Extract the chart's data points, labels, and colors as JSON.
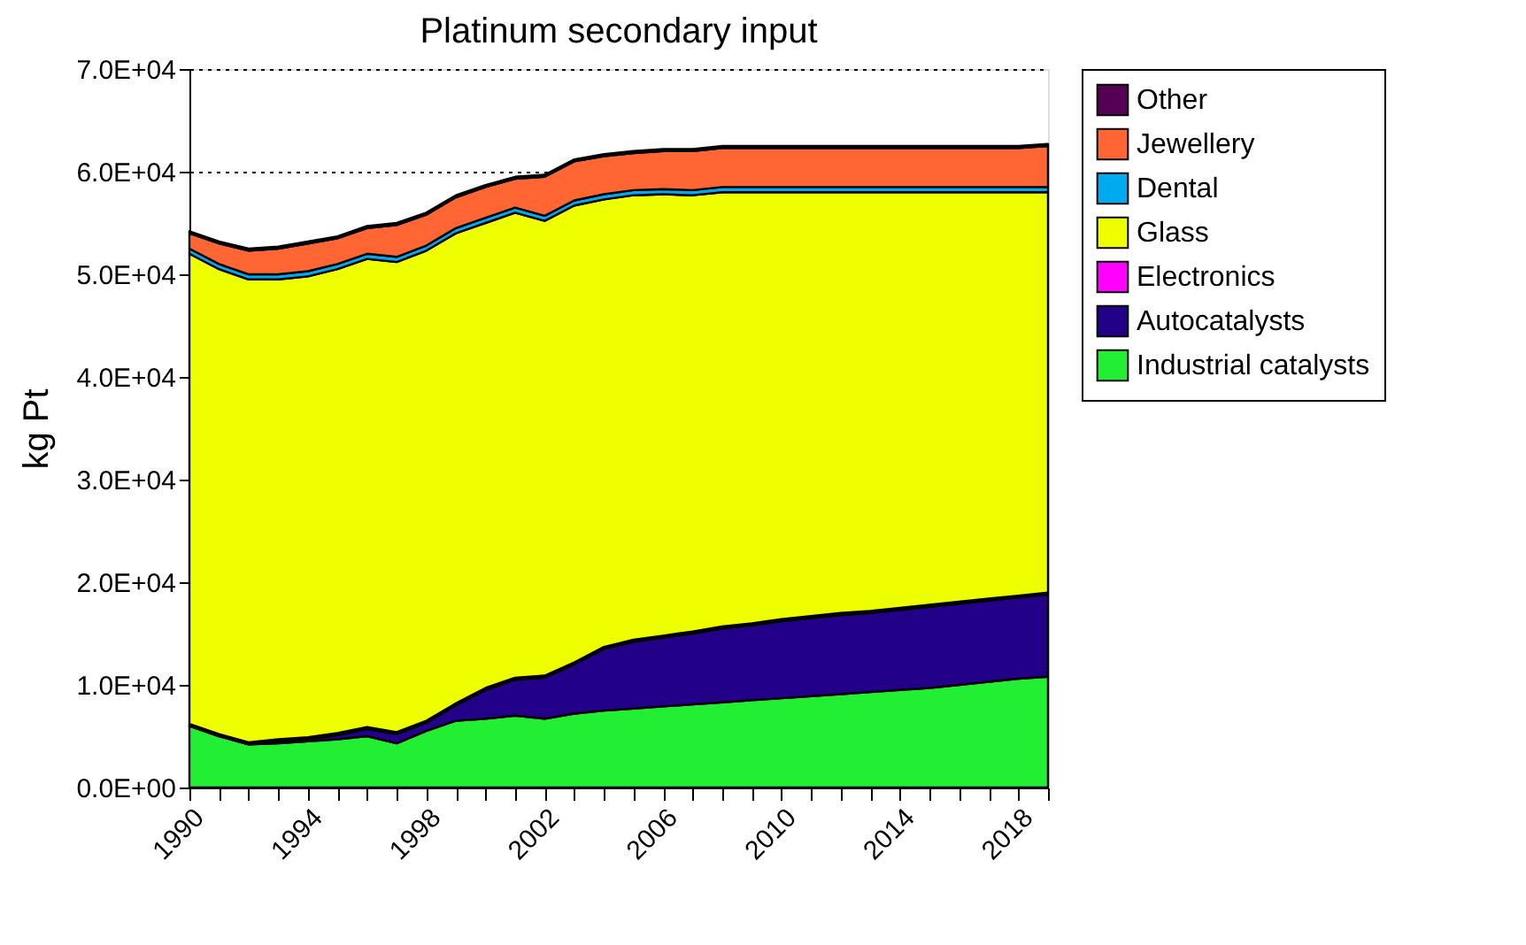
{
  "chart_data": {
    "type": "area",
    "title": "Platinum secondary input",
    "ylabel": "kg Pt",
    "stacked": true,
    "legend": "right",
    "grid": "y",
    "x": [
      1990,
      1991,
      1992,
      1993,
      1994,
      1995,
      1996,
      1997,
      1998,
      1999,
      2000,
      2001,
      2002,
      2003,
      2004,
      2005,
      2006,
      2007,
      2008,
      2009,
      2010,
      2011,
      2012,
      2013,
      2014,
      2015,
      2016,
      2017,
      2018,
      2019
    ],
    "series": [
      {
        "name": "Industrial catalysts",
        "color": "#22ee33",
        "values": [
          6000,
          5000,
          4200,
          4300,
          4500,
          4700,
          5000,
          4300,
          5500,
          6500,
          6700,
          7000,
          6700,
          7200,
          7500,
          7700,
          7900,
          8100,
          8300,
          8500,
          8700,
          8900,
          9100,
          9300,
          9500,
          9700,
          10000,
          10300,
          10600,
          10800
        ]
      },
      {
        "name": "Autocatalysts",
        "color": "#220088",
        "values": [
          0,
          0,
          0,
          200,
          200,
          400,
          700,
          900,
          800,
          1500,
          2800,
          3500,
          4000,
          4800,
          6000,
          6500,
          6700,
          6900,
          7200,
          7300,
          7500,
          7600,
          7700,
          7700,
          7800,
          7900,
          7900,
          7900,
          7900,
          8000
        ]
      },
      {
        "name": "Electronics",
        "color": "#ff00ff",
        "values": [
          200,
          200,
          200,
          200,
          200,
          200,
          200,
          200,
          200,
          200,
          200,
          200,
          200,
          200,
          200,
          200,
          200,
          200,
          200,
          200,
          200,
          200,
          200,
          200,
          200,
          200,
          200,
          200,
          200,
          200
        ]
      },
      {
        "name": "Glass",
        "color": "#eeff00",
        "values": [
          45800,
          45300,
          45100,
          44800,
          44900,
          45200,
          45600,
          45800,
          45800,
          45800,
          45300,
          45300,
          44300,
          44500,
          43600,
          43300,
          43000,
          42500,
          42300,
          42000,
          41600,
          41300,
          41000,
          40800,
          40500,
          40200,
          39900,
          39600,
          39300,
          39000
        ]
      },
      {
        "name": "Dental",
        "color": "#00aaee",
        "values": [
          500,
          500,
          500,
          500,
          500,
          500,
          500,
          500,
          500,
          500,
          500,
          500,
          500,
          500,
          500,
          500,
          500,
          500,
          500,
          500,
          500,
          500,
          500,
          500,
          500,
          500,
          500,
          500,
          500,
          500
        ]
      },
      {
        "name": "Jewellery",
        "color": "#ff6633",
        "values": [
          1500,
          2000,
          2300,
          2500,
          2700,
          2500,
          2500,
          3100,
          3000,
          3000,
          3000,
          2800,
          3800,
          3800,
          3700,
          3600,
          3700,
          3800,
          3800,
          3800,
          3800,
          3800,
          3800,
          3800,
          3800,
          3800,
          3800,
          3800,
          3800,
          4000
        ]
      },
      {
        "name": "Other",
        "color": "#550055",
        "values": [
          200,
          200,
          200,
          200,
          200,
          200,
          200,
          200,
          200,
          200,
          200,
          200,
          200,
          200,
          200,
          200,
          200,
          200,
          200,
          200,
          200,
          200,
          200,
          200,
          200,
          200,
          200,
          200,
          200,
          200
        ]
      }
    ],
    "xlim": [
      1990,
      2019
    ],
    "xticks": [
      1990,
      {
        "value": 1991,
        "label": null
      },
      {
        "value": 1992,
        "label": null
      },
      {
        "value": 1993,
        "label": null
      },
      1994,
      {
        "value": 1995,
        "label": null
      },
      {
        "value": 1996,
        "label": null
      },
      {
        "value": 1997,
        "label": null
      },
      1998,
      {
        "value": 1999,
        "label": null
      },
      {
        "value": 2000,
        "label": null
      },
      {
        "value": 2001,
        "label": null
      },
      2002,
      {
        "value": 2003,
        "label": null
      },
      {
        "value": 2004,
        "label": null
      },
      {
        "value": 2005,
        "label": null
      },
      2006,
      {
        "value": 2007,
        "label": null
      },
      {
        "value": 2008,
        "label": null
      },
      {
        "value": 2009,
        "label": null
      },
      2010,
      {
        "value": 2011,
        "label": null
      },
      {
        "value": 2012,
        "label": null
      },
      {
        "value": 2013,
        "label": null
      },
      2014,
      {
        "value": 2015,
        "label": null
      },
      {
        "value": 2016,
        "label": null
      },
      {
        "value": 2017,
        "label": null
      },
      2018,
      {
        "value": 2019,
        "label": null
      }
    ],
    "ylim": [
      0,
      70000
    ],
    "yticks": [
      {
        "value": 0,
        "label": "0.0E+00"
      },
      {
        "value": 10000,
        "label": "1.0E+04"
      },
      {
        "value": 20000,
        "label": "2.0E+04"
      },
      {
        "value": 30000,
        "label": "3.0E+04"
      },
      {
        "value": 40000,
        "label": "4.0E+04"
      },
      {
        "value": 50000,
        "label": "5.0E+04"
      },
      {
        "value": 60000,
        "label": "6.0E+04"
      },
      {
        "value": 70000,
        "label": "7.0E+04"
      }
    ]
  }
}
